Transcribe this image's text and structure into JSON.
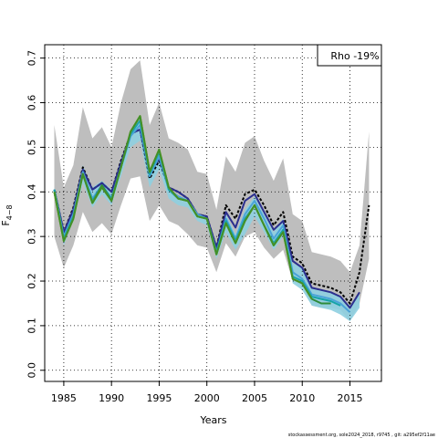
{
  "chart_data": {
    "type": "line",
    "title": "",
    "xlabel": "Years",
    "ylabel": "F",
    "ylabel_sub": "4−8",
    "xlim": [
      1983,
      2018.3
    ],
    "ylim": [
      -0.025,
      0.73
    ],
    "xticks": [
      1985,
      1990,
      1995,
      2000,
      2005,
      2010,
      2015
    ],
    "yticks": [
      0.0,
      0.1,
      0.2,
      0.3,
      0.4,
      0.5,
      0.6,
      0.7
    ],
    "xtick_labels": [
      "1985",
      "1990",
      "1995",
      "2000",
      "2005",
      "2010",
      "2015"
    ],
    "ytick_labels": [
      "0.0",
      "0.1",
      "0.2",
      "0.3",
      "0.4",
      "0.5",
      "0.6",
      "0.7"
    ],
    "grid": true,
    "legend_text": "Rho -19%",
    "legend_position": "top-right",
    "footer": "stockassessment.org, sole2024_2018, r9745 , git: a295ef2f11ae",
    "outer_band": {
      "x": [
        1984,
        1985,
        1986,
        1987,
        1988,
        1989,
        1990,
        1991,
        1992,
        1993,
        1994,
        1995,
        1996,
        1997,
        1998,
        1999,
        2000,
        2001,
        2002,
        2003,
        2004,
        2005,
        2006,
        2007,
        2008,
        2009,
        2010,
        2011,
        2012,
        2013,
        2014,
        2015,
        2016,
        2017
      ],
      "upper": [
        0.55,
        0.41,
        0.46,
        0.59,
        0.52,
        0.545,
        0.5,
        0.6,
        0.675,
        0.695,
        0.55,
        0.6,
        0.52,
        0.51,
        0.495,
        0.445,
        0.44,
        0.36,
        0.48,
        0.445,
        0.51,
        0.525,
        0.47,
        0.425,
        0.475,
        0.35,
        0.335,
        0.265,
        0.26,
        0.255,
        0.245,
        0.22,
        0.28,
        0.535
      ],
      "lower": [
        0.3,
        0.23,
        0.28,
        0.355,
        0.31,
        0.33,
        0.305,
        0.37,
        0.43,
        0.435,
        0.335,
        0.37,
        0.335,
        0.325,
        0.305,
        0.28,
        0.275,
        0.22,
        0.285,
        0.255,
        0.3,
        0.31,
        0.275,
        0.25,
        0.27,
        0.2,
        0.19,
        0.145,
        0.14,
        0.14,
        0.135,
        0.11,
        0.15,
        0.25
      ]
    },
    "inner_band": {
      "x": [
        1984,
        1985,
        1986,
        1987,
        1988,
        1989,
        1990,
        1991,
        1992,
        1993,
        1994,
        1995,
        1996,
        1997,
        1998,
        1999,
        2000,
        2001,
        2002,
        2003,
        2004,
        2005,
        2006,
        2007,
        2008,
        2009,
        2010,
        2011,
        2012,
        2013,
        2014,
        2015,
        2016
      ],
      "upper": [
        0.41,
        0.31,
        0.37,
        0.46,
        0.41,
        0.425,
        0.405,
        0.475,
        0.535,
        0.555,
        0.445,
        0.48,
        0.405,
        0.39,
        0.385,
        0.35,
        0.345,
        0.28,
        0.35,
        0.305,
        0.36,
        0.39,
        0.35,
        0.31,
        0.34,
        0.24,
        0.23,
        0.185,
        0.18,
        0.175,
        0.165,
        0.145,
        0.17
      ],
      "lower": [
        0.4,
        0.28,
        0.335,
        0.42,
        0.365,
        0.395,
        0.37,
        0.435,
        0.5,
        0.515,
        0.41,
        0.45,
        0.385,
        0.37,
        0.365,
        0.335,
        0.325,
        0.25,
        0.31,
        0.27,
        0.305,
        0.345,
        0.31,
        0.27,
        0.3,
        0.195,
        0.18,
        0.145,
        0.14,
        0.135,
        0.125,
        0.11,
        0.14
      ]
    },
    "series": [
      {
        "x": [
          1984,
          1985,
          1986,
          1987,
          1988,
          1989,
          1990,
          1991,
          1992,
          1993,
          1994,
          1995,
          1996,
          1997,
          1998,
          1999,
          2000,
          2001,
          2002,
          2003,
          2004,
          2005,
          2006,
          2007,
          2008,
          2009,
          2010,
          2011,
          2012,
          2013,
          2014,
          2015,
          2016,
          2017
        ],
        "values": [
          0.405,
          0.31,
          0.365,
          0.455,
          0.405,
          0.42,
          0.4,
          0.47,
          0.53,
          0.54,
          0.43,
          0.47,
          0.41,
          0.4,
          0.385,
          0.35,
          0.345,
          0.275,
          0.37,
          0.34,
          0.395,
          0.405,
          0.37,
          0.325,
          0.355,
          0.255,
          0.24,
          0.195,
          0.19,
          0.185,
          0.175,
          0.15,
          0.22,
          0.37
        ],
        "color": "#000000",
        "dash": "3,2"
      },
      {
        "x": [
          1984,
          1985,
          1986,
          1987,
          1988,
          1989,
          1990,
          1991,
          1992,
          1993,
          1994,
          1995,
          1996,
          1997,
          1998,
          1999,
          2000,
          2001,
          2002,
          2003,
          2004,
          2005,
          2006,
          2007,
          2008,
          2009,
          2010,
          2011,
          2012,
          2013,
          2014,
          2015,
          2016
        ],
        "values": [
          0.405,
          0.31,
          0.36,
          0.45,
          0.405,
          0.42,
          0.4,
          0.465,
          0.53,
          0.54,
          0.44,
          0.475,
          0.41,
          0.4,
          0.385,
          0.35,
          0.345,
          0.275,
          0.355,
          0.32,
          0.38,
          0.395,
          0.355,
          0.315,
          0.335,
          0.245,
          0.23,
          0.185,
          0.18,
          0.175,
          0.165,
          0.14,
          0.175
        ],
        "color": "#2b2f8f"
      },
      {
        "x": [
          1984,
          1985,
          1986,
          1987,
          1988,
          1989,
          1990,
          1991,
          1992,
          1993,
          1994,
          1995,
          1996,
          1997,
          1998,
          1999,
          2000,
          2001,
          2002,
          2003,
          2004,
          2005,
          2006,
          2007,
          2008,
          2009,
          2010,
          2011,
          2012,
          2013,
          2014,
          2015
        ],
        "values": [
          0.405,
          0.3,
          0.35,
          0.445,
          0.385,
          0.415,
          0.385,
          0.455,
          0.525,
          0.55,
          0.435,
          0.48,
          0.405,
          0.39,
          0.38,
          0.35,
          0.34,
          0.265,
          0.34,
          0.295,
          0.35,
          0.38,
          0.34,
          0.295,
          0.325,
          0.22,
          0.205,
          0.17,
          0.165,
          0.16,
          0.15,
          0.13
        ],
        "color": "#4aa3d8"
      },
      {
        "x": [
          1984,
          1985,
          1986,
          1987,
          1988,
          1989,
          1990,
          1991,
          1992,
          1993,
          1994,
          1995,
          1996,
          1997,
          1998,
          1999,
          2000,
          2001,
          2002,
          2003,
          2004,
          2005,
          2006,
          2007,
          2008,
          2009,
          2010,
          2011,
          2012,
          2013,
          2014
        ],
        "values": [
          0.405,
          0.295,
          0.345,
          0.44,
          0.38,
          0.415,
          0.385,
          0.455,
          0.53,
          0.56,
          0.44,
          0.49,
          0.405,
          0.385,
          0.38,
          0.345,
          0.34,
          0.265,
          0.335,
          0.29,
          0.34,
          0.37,
          0.325,
          0.285,
          0.315,
          0.21,
          0.2,
          0.165,
          0.16,
          0.155,
          0.145
        ],
        "color": "#16a3a8"
      },
      {
        "x": [
          1984,
          1985,
          1986,
          1987,
          1988,
          1989,
          1990,
          1991,
          1992,
          1993,
          1994,
          1995,
          1996,
          1997,
          1998,
          1999,
          2000,
          2001,
          2002,
          2003,
          2004,
          2005,
          2006,
          2007,
          2008,
          2009,
          2010,
          2011,
          2012,
          2013
        ],
        "values": [
          0.4,
          0.29,
          0.34,
          0.44,
          0.375,
          0.415,
          0.38,
          0.455,
          0.535,
          0.57,
          0.445,
          0.495,
          0.41,
          0.385,
          0.38,
          0.345,
          0.34,
          0.26,
          0.33,
          0.285,
          0.335,
          0.37,
          0.325,
          0.28,
          0.31,
          0.205,
          0.195,
          0.16,
          0.15,
          0.15
        ],
        "color": "#2e8b3a"
      },
      {
        "x": [
          1984,
          1985,
          1986,
          1987,
          1988,
          1989,
          1990,
          1991,
          1992,
          1993,
          1994,
          1995,
          1996,
          1997,
          1998,
          1999,
          2000,
          2001,
          2002,
          2003,
          2004,
          2005,
          2006,
          2007,
          2008,
          2009,
          2010,
          2011
        ],
        "values": [
          0.4,
          0.29,
          0.34,
          0.44,
          0.375,
          0.41,
          0.38,
          0.455,
          0.535,
          0.57,
          0.445,
          0.495,
          0.41,
          0.385,
          0.38,
          0.345,
          0.34,
          0.26,
          0.33,
          0.285,
          0.335,
          0.37,
          0.325,
          0.28,
          0.31,
          0.205,
          0.195,
          0.16
        ],
        "color": "#c8c21c"
      },
      {
        "x": [
          1984,
          1985,
          1986,
          1987,
          1988,
          1989,
          1990,
          1991,
          1992,
          1993,
          1994,
          1995,
          1996,
          1997,
          1998,
          1999,
          2000,
          2001,
          2002,
          2003,
          2004,
          2005,
          2006,
          2007,
          2008,
          2009,
          2010,
          2011
        ],
        "values": [
          0.4,
          0.29,
          0.34,
          0.44,
          0.375,
          0.41,
          0.38,
          0.455,
          0.535,
          0.57,
          0.445,
          0.495,
          0.41,
          0.385,
          0.38,
          0.345,
          0.34,
          0.26,
          0.33,
          0.285,
          0.335,
          0.37,
          0.325,
          0.28,
          0.31,
          0.205,
          0.195,
          0.16
        ],
        "color": "#3f8f2a"
      }
    ],
    "colors": {
      "outer_band": "#bebebe",
      "inner_band": "#8ecfe0"
    }
  }
}
